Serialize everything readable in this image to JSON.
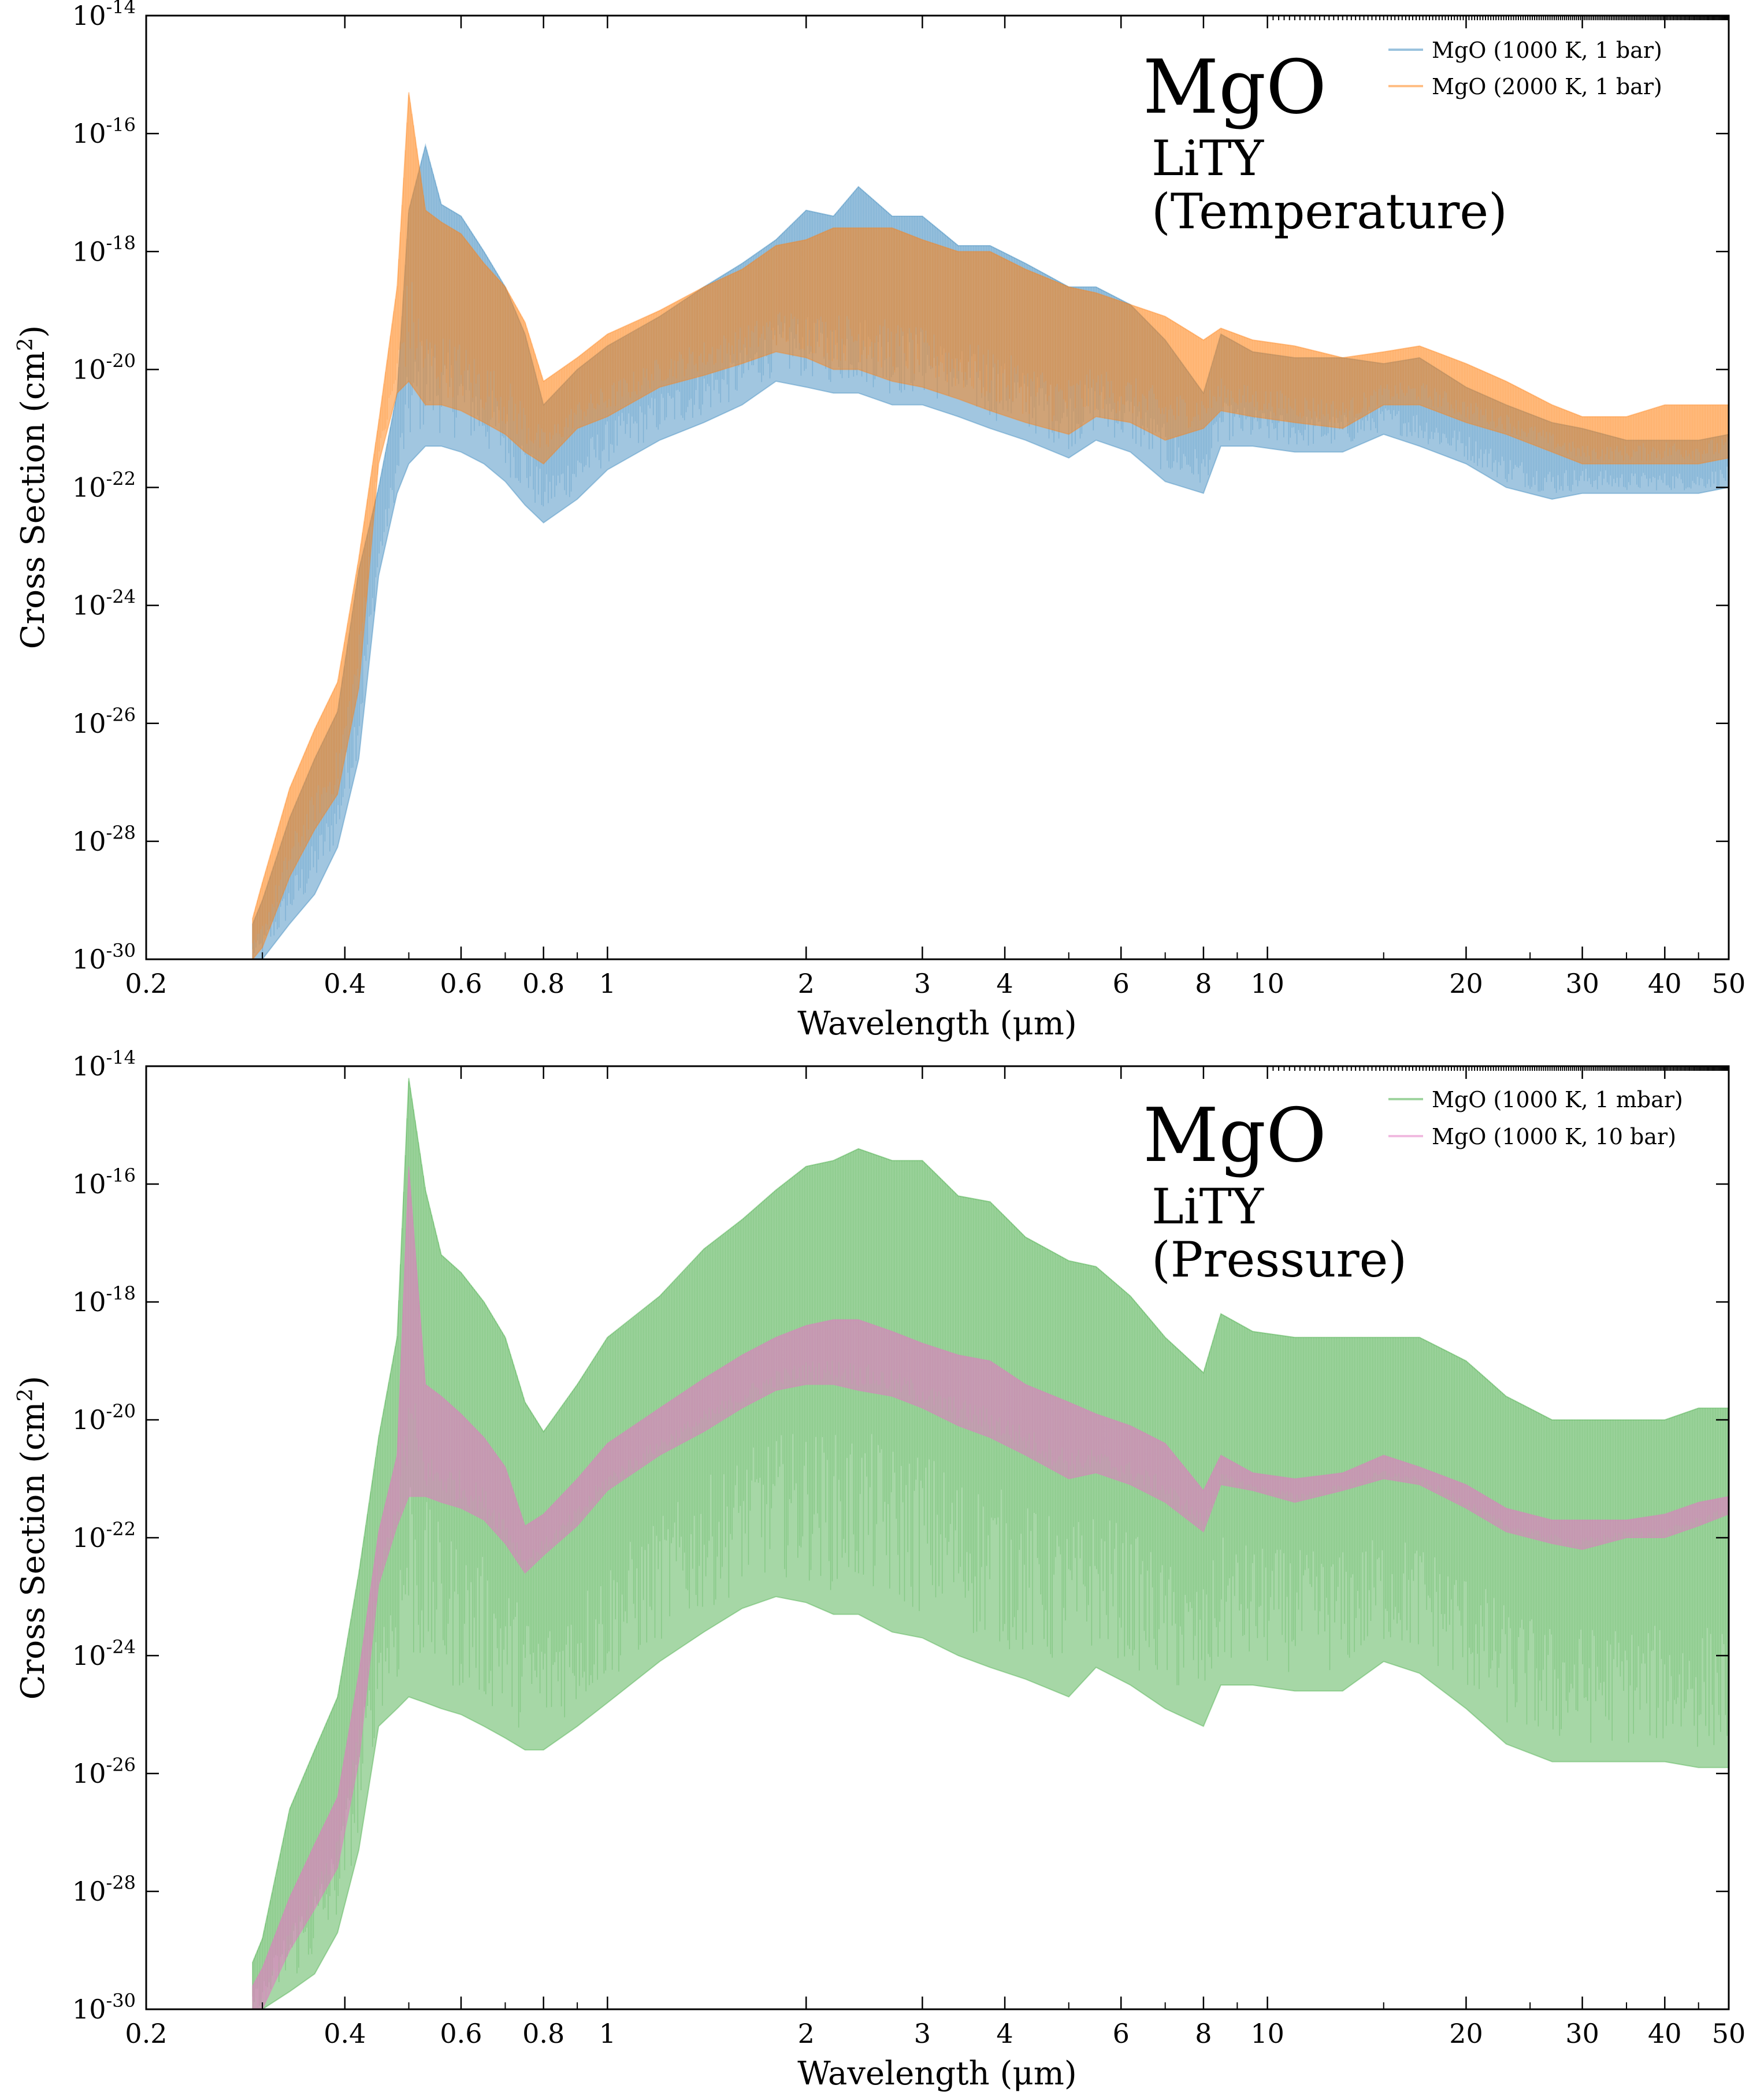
{
  "chart_data": [
    {
      "type": "area",
      "panel": "temperature",
      "annotation": {
        "species": "MgO",
        "linelist": "LiTY",
        "subtitle": "(Temperature)"
      },
      "xlabel": "Wavelength (μm)",
      "ylabel": "Cross Section (cm²)",
      "ylabel_parts": {
        "main": "Cross Section (cm",
        "sup": "2",
        "end": ")"
      },
      "x_scale": "log",
      "y_scale": "log",
      "xlim": [
        0.2,
        50
      ],
      "ylim": [
        1e-30,
        1e-14
      ],
      "x_ticks": [
        0.2,
        0.4,
        0.6,
        0.8,
        1,
        2,
        3,
        4,
        6,
        8,
        10,
        20,
        30,
        40,
        50
      ],
      "x_tick_labels": [
        "0.2",
        "0.4",
        "0.6",
        "0.8",
        "1",
        "2",
        "3",
        "4",
        "6",
        "8",
        "10",
        "20",
        "30",
        "40",
        "50"
      ],
      "y_tick_exponents": [
        -30,
        -28,
        -26,
        -24,
        -22,
        -20,
        -18,
        -16,
        -14
      ],
      "y_tick_base": "10",
      "grid": false,
      "legend_position": "top-right",
      "series": [
        {
          "name": "MgO (1000 K, 1 bar)",
          "color": "#1f77b4",
          "x": [
            0.29,
            0.3,
            0.33,
            0.36,
            0.39,
            0.42,
            0.45,
            0.48,
            0.5,
            0.53,
            0.56,
            0.6,
            0.65,
            0.7,
            0.75,
            0.8,
            0.9,
            1.0,
            1.2,
            1.4,
            1.6,
            1.8,
            2.0,
            2.2,
            2.4,
            2.7,
            3.0,
            3.4,
            3.8,
            4.3,
            5.0,
            5.5,
            6.2,
            7.0,
            8.0,
            8.5,
            9.5,
            11,
            13,
            15,
            17,
            20,
            23,
            27,
            30,
            35,
            40,
            45,
            50
          ],
          "top": [
            -29.4,
            -29.0,
            -27.6,
            -26.6,
            -25.8,
            -23.4,
            -22.0,
            -20.4,
            -17.3,
            -16.2,
            -17.2,
            -17.4,
            -18.0,
            -18.6,
            -19.4,
            -20.6,
            -20.0,
            -19.6,
            -19.1,
            -18.6,
            -18.2,
            -17.8,
            -17.3,
            -17.4,
            -16.9,
            -17.4,
            -17.4,
            -17.9,
            -17.9,
            -18.2,
            -18.6,
            -18.6,
            -18.9,
            -19.5,
            -20.4,
            -19.4,
            -19.7,
            -19.8,
            -19.8,
            -19.9,
            -19.8,
            -20.3,
            -20.6,
            -20.9,
            -21.0,
            -21.2,
            -21.2,
            -21.2,
            -21.1
          ],
          "bottom": [
            -30.0,
            -30.0,
            -29.4,
            -28.9,
            -28.1,
            -26.6,
            -23.5,
            -22.1,
            -21.6,
            -21.3,
            -21.3,
            -21.4,
            -21.6,
            -21.9,
            -22.3,
            -22.6,
            -22.2,
            -21.7,
            -21.2,
            -20.9,
            -20.6,
            -20.2,
            -20.3,
            -20.4,
            -20.4,
            -20.6,
            -20.6,
            -20.8,
            -21.0,
            -21.2,
            -21.5,
            -21.2,
            -21.4,
            -21.9,
            -22.1,
            -21.3,
            -21.3,
            -21.4,
            -21.4,
            -21.1,
            -21.3,
            -21.6,
            -22.0,
            -22.2,
            -22.1,
            -22.1,
            -22.1,
            -22.1,
            -22.0
          ]
        },
        {
          "name": "MgO (2000 K, 1 bar)",
          "color": "#ff7f0e",
          "x": [
            0.29,
            0.3,
            0.33,
            0.36,
            0.39,
            0.42,
            0.45,
            0.48,
            0.5,
            0.53,
            0.56,
            0.6,
            0.65,
            0.7,
            0.75,
            0.8,
            0.9,
            1.0,
            1.2,
            1.4,
            1.6,
            1.8,
            2.0,
            2.2,
            2.4,
            2.7,
            3.0,
            3.4,
            3.8,
            4.3,
            5.0,
            5.5,
            6.2,
            7.0,
            8.0,
            8.5,
            9.5,
            11,
            13,
            15,
            17,
            20,
            23,
            27,
            30,
            35,
            40,
            45,
            50
          ],
          "top": [
            -29.3,
            -28.7,
            -27.1,
            -26.1,
            -25.3,
            -23.2,
            -20.9,
            -18.6,
            -15.3,
            -17.3,
            -17.5,
            -17.7,
            -18.2,
            -18.6,
            -19.2,
            -20.2,
            -19.8,
            -19.4,
            -19.0,
            -18.6,
            -18.3,
            -17.9,
            -17.8,
            -17.6,
            -17.6,
            -17.6,
            -17.8,
            -18.0,
            -18.0,
            -18.3,
            -18.6,
            -18.7,
            -18.9,
            -19.1,
            -19.5,
            -19.3,
            -19.5,
            -19.6,
            -19.8,
            -19.7,
            -19.6,
            -19.9,
            -20.2,
            -20.6,
            -20.8,
            -20.8,
            -20.6,
            -20.6,
            -20.6
          ],
          "bottom": [
            -30.0,
            -29.8,
            -28.6,
            -27.8,
            -27.2,
            -25.4,
            -21.6,
            -20.4,
            -20.2,
            -20.6,
            -20.6,
            -20.7,
            -20.9,
            -21.1,
            -21.4,
            -21.6,
            -21.0,
            -20.8,
            -20.3,
            -20.1,
            -19.9,
            -19.7,
            -19.8,
            -20.0,
            -20.0,
            -20.2,
            -20.3,
            -20.5,
            -20.7,
            -20.9,
            -21.1,
            -20.8,
            -20.9,
            -21.2,
            -21.0,
            -20.7,
            -20.8,
            -20.9,
            -21.0,
            -20.6,
            -20.6,
            -20.9,
            -21.1,
            -21.4,
            -21.6,
            -21.6,
            -21.6,
            -21.6,
            -21.5
          ]
        }
      ]
    },
    {
      "type": "area",
      "panel": "pressure",
      "annotation": {
        "species": "MgO",
        "linelist": "LiTY",
        "subtitle": "(Pressure)"
      },
      "xlabel": "Wavelength (μm)",
      "ylabel": "Cross Section (cm²)",
      "ylabel_parts": {
        "main": "Cross Section (cm",
        "sup": "2",
        "end": ")"
      },
      "x_scale": "log",
      "y_scale": "log",
      "xlim": [
        0.2,
        50
      ],
      "ylim": [
        1e-30,
        1e-14
      ],
      "x_ticks": [
        0.2,
        0.4,
        0.6,
        0.8,
        1,
        2,
        3,
        4,
        6,
        8,
        10,
        20,
        30,
        40,
        50
      ],
      "x_tick_labels": [
        "0.2",
        "0.4",
        "0.6",
        "0.8",
        "1",
        "2",
        "3",
        "4",
        "6",
        "8",
        "10",
        "20",
        "30",
        "40",
        "50"
      ],
      "y_tick_exponents": [
        -30,
        -28,
        -26,
        -24,
        -22,
        -20,
        -18,
        -16,
        -14
      ],
      "y_tick_base": "10",
      "grid": false,
      "legend_position": "top-right",
      "series": [
        {
          "name": "MgO (1000 K, 1 mbar)",
          "color": "#2ca02c",
          "x": [
            0.29,
            0.3,
            0.33,
            0.36,
            0.39,
            0.42,
            0.45,
            0.48,
            0.5,
            0.53,
            0.56,
            0.6,
            0.65,
            0.7,
            0.75,
            0.8,
            0.9,
            1.0,
            1.2,
            1.4,
            1.6,
            1.8,
            2.0,
            2.2,
            2.4,
            2.7,
            3.0,
            3.4,
            3.8,
            4.3,
            5.0,
            5.5,
            6.2,
            7.0,
            8.0,
            8.5,
            9.5,
            11,
            13,
            15,
            17,
            20,
            23,
            27,
            30,
            35,
            40,
            45,
            50
          ],
          "top": [
            -29.2,
            -28.8,
            -26.6,
            -25.6,
            -24.7,
            -22.6,
            -20.3,
            -18.6,
            -14.2,
            -16.1,
            -17.2,
            -17.5,
            -18.0,
            -18.6,
            -19.7,
            -20.2,
            -19.4,
            -18.6,
            -17.9,
            -17.1,
            -16.6,
            -16.1,
            -15.7,
            -15.6,
            -15.4,
            -15.6,
            -15.6,
            -16.2,
            -16.3,
            -16.9,
            -17.3,
            -17.4,
            -17.9,
            -18.6,
            -19.2,
            -18.2,
            -18.5,
            -18.6,
            -18.6,
            -18.6,
            -18.6,
            -19.0,
            -19.6,
            -20.0,
            -20.0,
            -20.0,
            -20.0,
            -19.8,
            -19.8
          ],
          "bottom": [
            -30.0,
            -30.0,
            -29.7,
            -29.4,
            -28.7,
            -27.3,
            -25.2,
            -24.9,
            -24.7,
            -24.8,
            -24.9,
            -25.0,
            -25.2,
            -25.4,
            -25.6,
            -25.6,
            -25.2,
            -24.8,
            -24.1,
            -23.6,
            -23.2,
            -23.0,
            -23.1,
            -23.3,
            -23.3,
            -23.6,
            -23.7,
            -24.0,
            -24.2,
            -24.4,
            -24.7,
            -24.2,
            -24.5,
            -24.9,
            -25.2,
            -24.5,
            -24.5,
            -24.6,
            -24.6,
            -24.1,
            -24.3,
            -24.9,
            -25.5,
            -25.8,
            -25.8,
            -25.8,
            -25.8,
            -25.9,
            -25.9
          ]
        },
        {
          "name": "MgO (1000 K, 10 bar)",
          "color": "#e377c2",
          "x": [
            0.29,
            0.3,
            0.33,
            0.36,
            0.39,
            0.42,
            0.45,
            0.48,
            0.5,
            0.53,
            0.56,
            0.6,
            0.65,
            0.7,
            0.75,
            0.8,
            0.9,
            1.0,
            1.2,
            1.4,
            1.6,
            1.8,
            2.0,
            2.2,
            2.4,
            2.7,
            3.0,
            3.4,
            3.8,
            4.3,
            5.0,
            5.5,
            6.2,
            7.0,
            8.0,
            8.5,
            9.5,
            11,
            13,
            15,
            17,
            20,
            23,
            27,
            30,
            35,
            40,
            45,
            50
          ],
          "top": [
            -29.6,
            -29.3,
            -28.1,
            -27.2,
            -26.4,
            -24.3,
            -21.9,
            -20.6,
            -15.7,
            -19.4,
            -19.6,
            -19.9,
            -20.3,
            -20.8,
            -21.8,
            -21.6,
            -21.0,
            -20.4,
            -19.8,
            -19.3,
            -18.9,
            -18.6,
            -18.4,
            -18.3,
            -18.3,
            -18.5,
            -18.7,
            -18.9,
            -19.0,
            -19.4,
            -19.7,
            -19.9,
            -20.1,
            -20.4,
            -21.2,
            -20.6,
            -20.9,
            -21.0,
            -20.9,
            -20.6,
            -20.8,
            -21.1,
            -21.5,
            -21.7,
            -21.7,
            -21.7,
            -21.6,
            -21.4,
            -21.3
          ],
          "bottom": [
            -30.0,
            -30.0,
            -29.0,
            -28.3,
            -27.6,
            -25.8,
            -22.8,
            -21.8,
            -21.3,
            -21.3,
            -21.4,
            -21.5,
            -21.7,
            -22.1,
            -22.6,
            -22.3,
            -21.8,
            -21.2,
            -20.6,
            -20.2,
            -19.8,
            -19.5,
            -19.4,
            -19.4,
            -19.5,
            -19.6,
            -19.8,
            -20.1,
            -20.3,
            -20.6,
            -21.0,
            -20.9,
            -21.1,
            -21.4,
            -21.9,
            -21.1,
            -21.2,
            -21.4,
            -21.2,
            -21.0,
            -21.1,
            -21.5,
            -21.9,
            -22.1,
            -22.2,
            -22.0,
            -22.0,
            -21.8,
            -21.6
          ]
        }
      ]
    }
  ]
}
